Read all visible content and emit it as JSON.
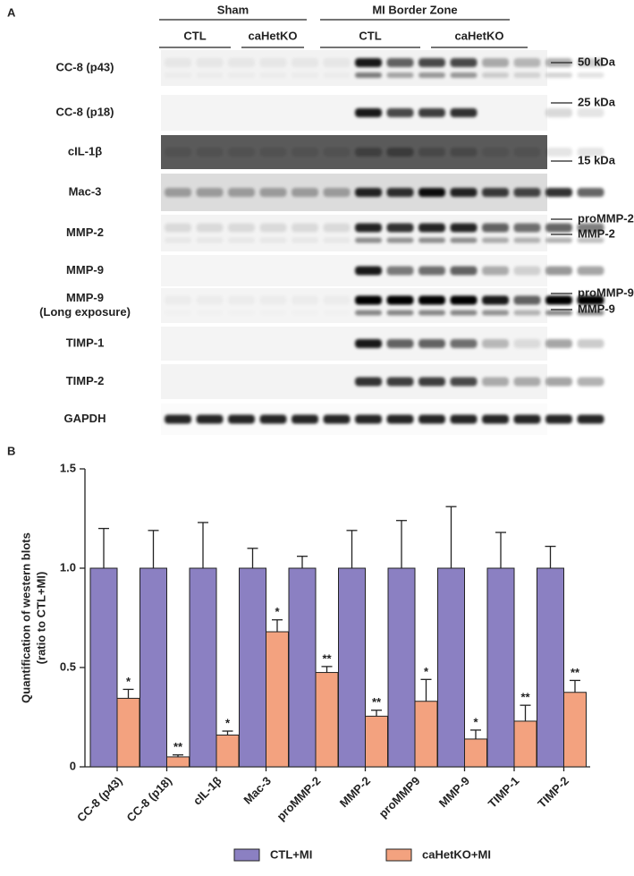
{
  "panel_a": {
    "label": "A",
    "groups": [
      {
        "name": "Sham",
        "subgroups": [
          "CTL",
          "caHetKO"
        ]
      },
      {
        "name": "MI Border Zone",
        "subgroups": [
          "CTL",
          "caHetKO"
        ]
      }
    ],
    "rows": [
      {
        "label": "CC-8 (p43)",
        "markers": [
          "50 kDa"
        ]
      },
      {
        "label": "CC-8 (p18)",
        "markers": [
          "25 kDa"
        ]
      },
      {
        "label": "cIL-1β",
        "markers": [
          "15 kDa"
        ]
      },
      {
        "label": "Mac-3",
        "markers": []
      },
      {
        "label": "MMP-2",
        "markers": [
          "proMMP-2",
          "MMP-2"
        ]
      },
      {
        "label": "MMP-9",
        "markers": []
      },
      {
        "label": "MMP-9",
        "sublabel": "(Long exposure)",
        "markers": [
          "proMMP-9",
          "MMP-9"
        ]
      },
      {
        "label": "TIMP-1",
        "markers": []
      },
      {
        "label": "TIMP-2",
        "markers": []
      },
      {
        "label": "GAPDH",
        "markers": []
      }
    ]
  },
  "chart_data": {
    "type": "bar",
    "panel_label": "B",
    "y_label": [
      "Quantification of western blots",
      "(ratio to CTL+MI)"
    ],
    "categories": [
      "CC-8 (p43)",
      "CC-8 (p18)",
      "cIL-1β",
      "Mac-3",
      "proMMP-2",
      "MMP-2",
      "proMMP9",
      "MMP-9",
      "TIMP-1",
      "TIMP-2"
    ],
    "series": [
      {
        "name": "CTL+MI",
        "color": "#8b80c2",
        "values": [
          1,
          1,
          1,
          1,
          1,
          1,
          1,
          1,
          1,
          1
        ],
        "errors": [
          0.2,
          0.19,
          0.23,
          0.1,
          0.06,
          0.19,
          0.24,
          0.31,
          0.18,
          0.11
        ]
      },
      {
        "name": "caHetKO+MI",
        "color": "#f3a27f",
        "values": [
          0.345,
          0.05,
          0.16,
          0.68,
          0.475,
          0.255,
          0.33,
          0.14,
          0.23,
          0.375
        ],
        "errors": [
          0.045,
          0.01,
          0.02,
          0.06,
          0.03,
          0.03,
          0.11,
          0.045,
          0.08,
          0.06
        ],
        "significance": [
          "*",
          "**",
          "*",
          "*",
          "**",
          "**",
          "*",
          "*",
          "**",
          "**"
        ]
      }
    ],
    "ylim": [
      0,
      1.5
    ],
    "yticks": [
      0,
      0.5,
      {
        "value": 1,
        "label": "1.0"
      },
      1.5
    ]
  }
}
